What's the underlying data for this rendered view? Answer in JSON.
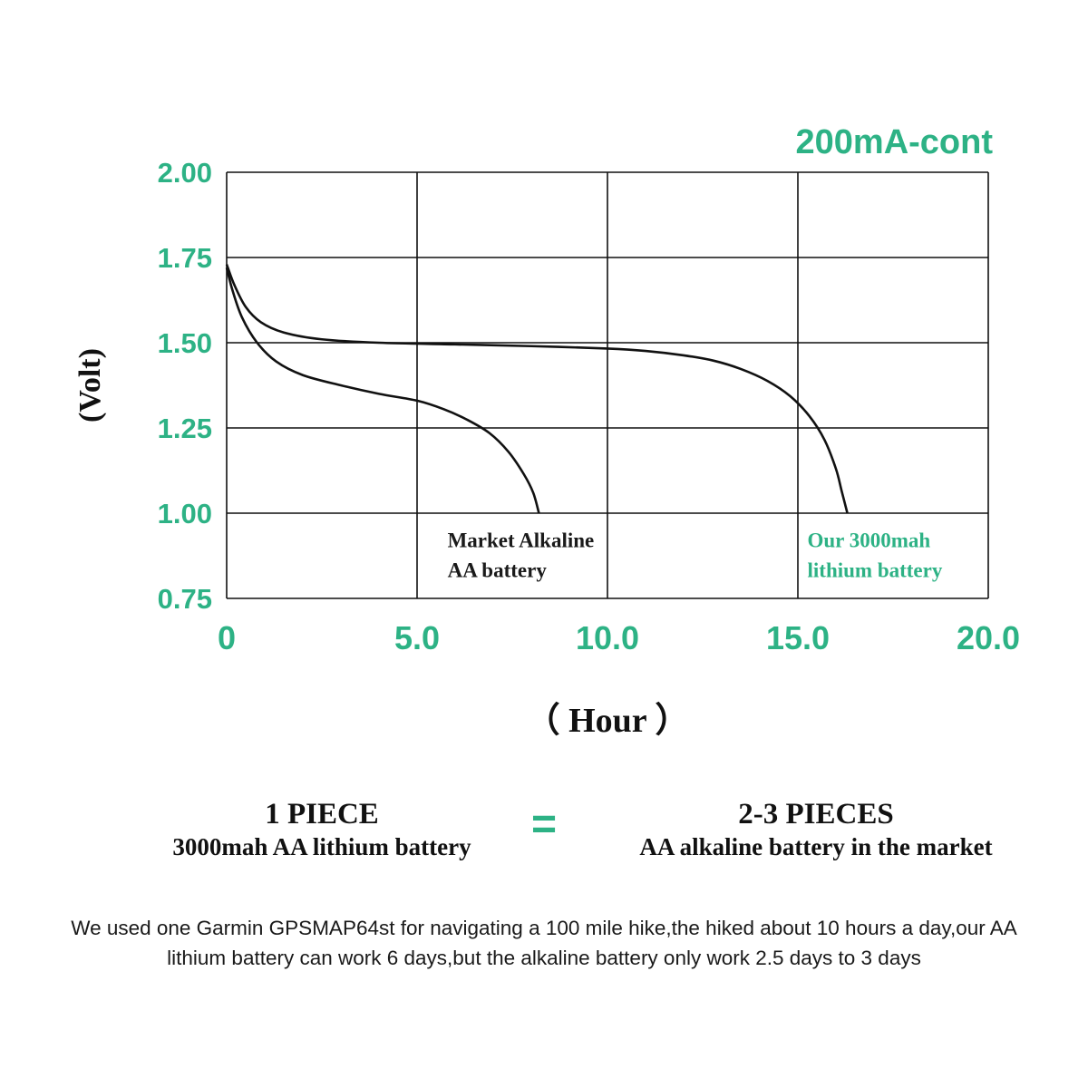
{
  "colors": {
    "accent": "#2db285",
    "curve": "#111111",
    "grid": "#111111"
  },
  "chart_data": {
    "type": "line",
    "title": "200mA-cont",
    "xlabel": "（ Hour ）",
    "ylabel": "(Volt)",
    "xlim": [
      0,
      20
    ],
    "ylim": [
      0.75,
      2.0
    ],
    "grid": true,
    "legend_position": "none",
    "xticks": [
      {
        "value": 0,
        "label": "0"
      },
      {
        "value": 5,
        "label": "5.0"
      },
      {
        "value": 10,
        "label": "10.0"
      },
      {
        "value": 15,
        "label": "15.0"
      },
      {
        "value": 20,
        "label": "20.0"
      }
    ],
    "yticks": [
      {
        "value": 0.75,
        "label": "0.75"
      },
      {
        "value": 1.0,
        "label": "1.00"
      },
      {
        "value": 1.25,
        "label": "1.25"
      },
      {
        "value": 1.5,
        "label": "1.50"
      },
      {
        "value": 1.75,
        "label": "1.75"
      },
      {
        "value": 2.0,
        "label": "2.00"
      }
    ],
    "series": [
      {
        "name": "Market Alkaline AA battery",
        "color": "#111111",
        "points": [
          [
            0,
            1.72
          ],
          [
            0.15,
            1.655
          ],
          [
            0.4,
            1.575
          ],
          [
            0.8,
            1.5
          ],
          [
            1.3,
            1.445
          ],
          [
            2,
            1.405
          ],
          [
            3,
            1.375
          ],
          [
            4,
            1.35
          ],
          [
            5,
            1.33
          ],
          [
            5.7,
            1.305
          ],
          [
            6.3,
            1.275
          ],
          [
            6.9,
            1.235
          ],
          [
            7.4,
            1.18
          ],
          [
            7.8,
            1.115
          ],
          [
            8.05,
            1.06
          ],
          [
            8.2,
            1.0
          ]
        ]
      },
      {
        "name": "Our 3000mah lithium battery",
        "color": "#111111",
        "points": [
          [
            0,
            1.73
          ],
          [
            0.2,
            1.67
          ],
          [
            0.5,
            1.605
          ],
          [
            0.9,
            1.56
          ],
          [
            1.5,
            1.53
          ],
          [
            2.5,
            1.51
          ],
          [
            4,
            1.5
          ],
          [
            6,
            1.495
          ],
          [
            8,
            1.49
          ],
          [
            10,
            1.483
          ],
          [
            11,
            1.476
          ],
          [
            12,
            1.463
          ],
          [
            12.8,
            1.447
          ],
          [
            13.5,
            1.423
          ],
          [
            14.2,
            1.388
          ],
          [
            14.8,
            1.343
          ],
          [
            15.3,
            1.285
          ],
          [
            15.7,
            1.215
          ],
          [
            16.0,
            1.13
          ],
          [
            16.15,
            1.065
          ],
          [
            16.3,
            1.0
          ]
        ]
      }
    ],
    "annotations": [
      {
        "lines": [
          "Market Alkaline",
          "AA battery"
        ],
        "x": 5.8,
        "y": 0.9,
        "color": "#1a1a1a"
      },
      {
        "lines": [
          "Our 3000mah",
          "lithium battery"
        ],
        "x": 15.25,
        "y": 0.9,
        "color": "#2db285"
      }
    ]
  },
  "equivalence": {
    "left_title": "1 PIECE",
    "left_subtitle": "3000mah AA lithium battery",
    "equals": "=",
    "right_title": "2-3 PIECES",
    "right_subtitle": "AA alkaline battery in the market"
  },
  "footer": {
    "text": "We used one Garmin GPSMAP64st for navigating a 100 mile hike,the hiked about 10 hours a day,our AA lithium battery can work 6 days,but the alkaline battery only work 2.5 days to 3 days"
  }
}
